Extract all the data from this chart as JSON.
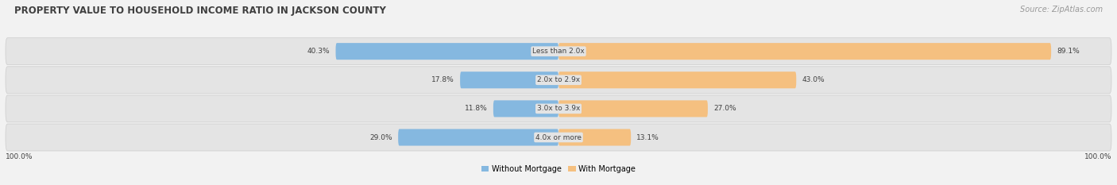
{
  "title": "PROPERTY VALUE TO HOUSEHOLD INCOME RATIO IN JACKSON COUNTY",
  "source": "Source: ZipAtlas.com",
  "categories": [
    "Less than 2.0x",
    "2.0x to 2.9x",
    "3.0x to 3.9x",
    "4.0x or more"
  ],
  "without_mortgage": [
    40.3,
    17.8,
    11.8,
    29.0
  ],
  "with_mortgage": [
    89.1,
    43.0,
    27.0,
    13.1
  ],
  "blue_color": "#85b8e0",
  "orange_color": "#f5c080",
  "bg_color": "#f2f2f2",
  "row_bg_color": "#e4e4e4",
  "row_bg_light": "#ebebeb",
  "title_color": "#404040",
  "source_color": "#999999",
  "label_color": "#404040",
  "axis_label_left": "100.0%",
  "axis_label_right": "100.0%",
  "legend_labels": [
    "Without Mortgage",
    "With Mortgage"
  ],
  "max_val": 100.0
}
